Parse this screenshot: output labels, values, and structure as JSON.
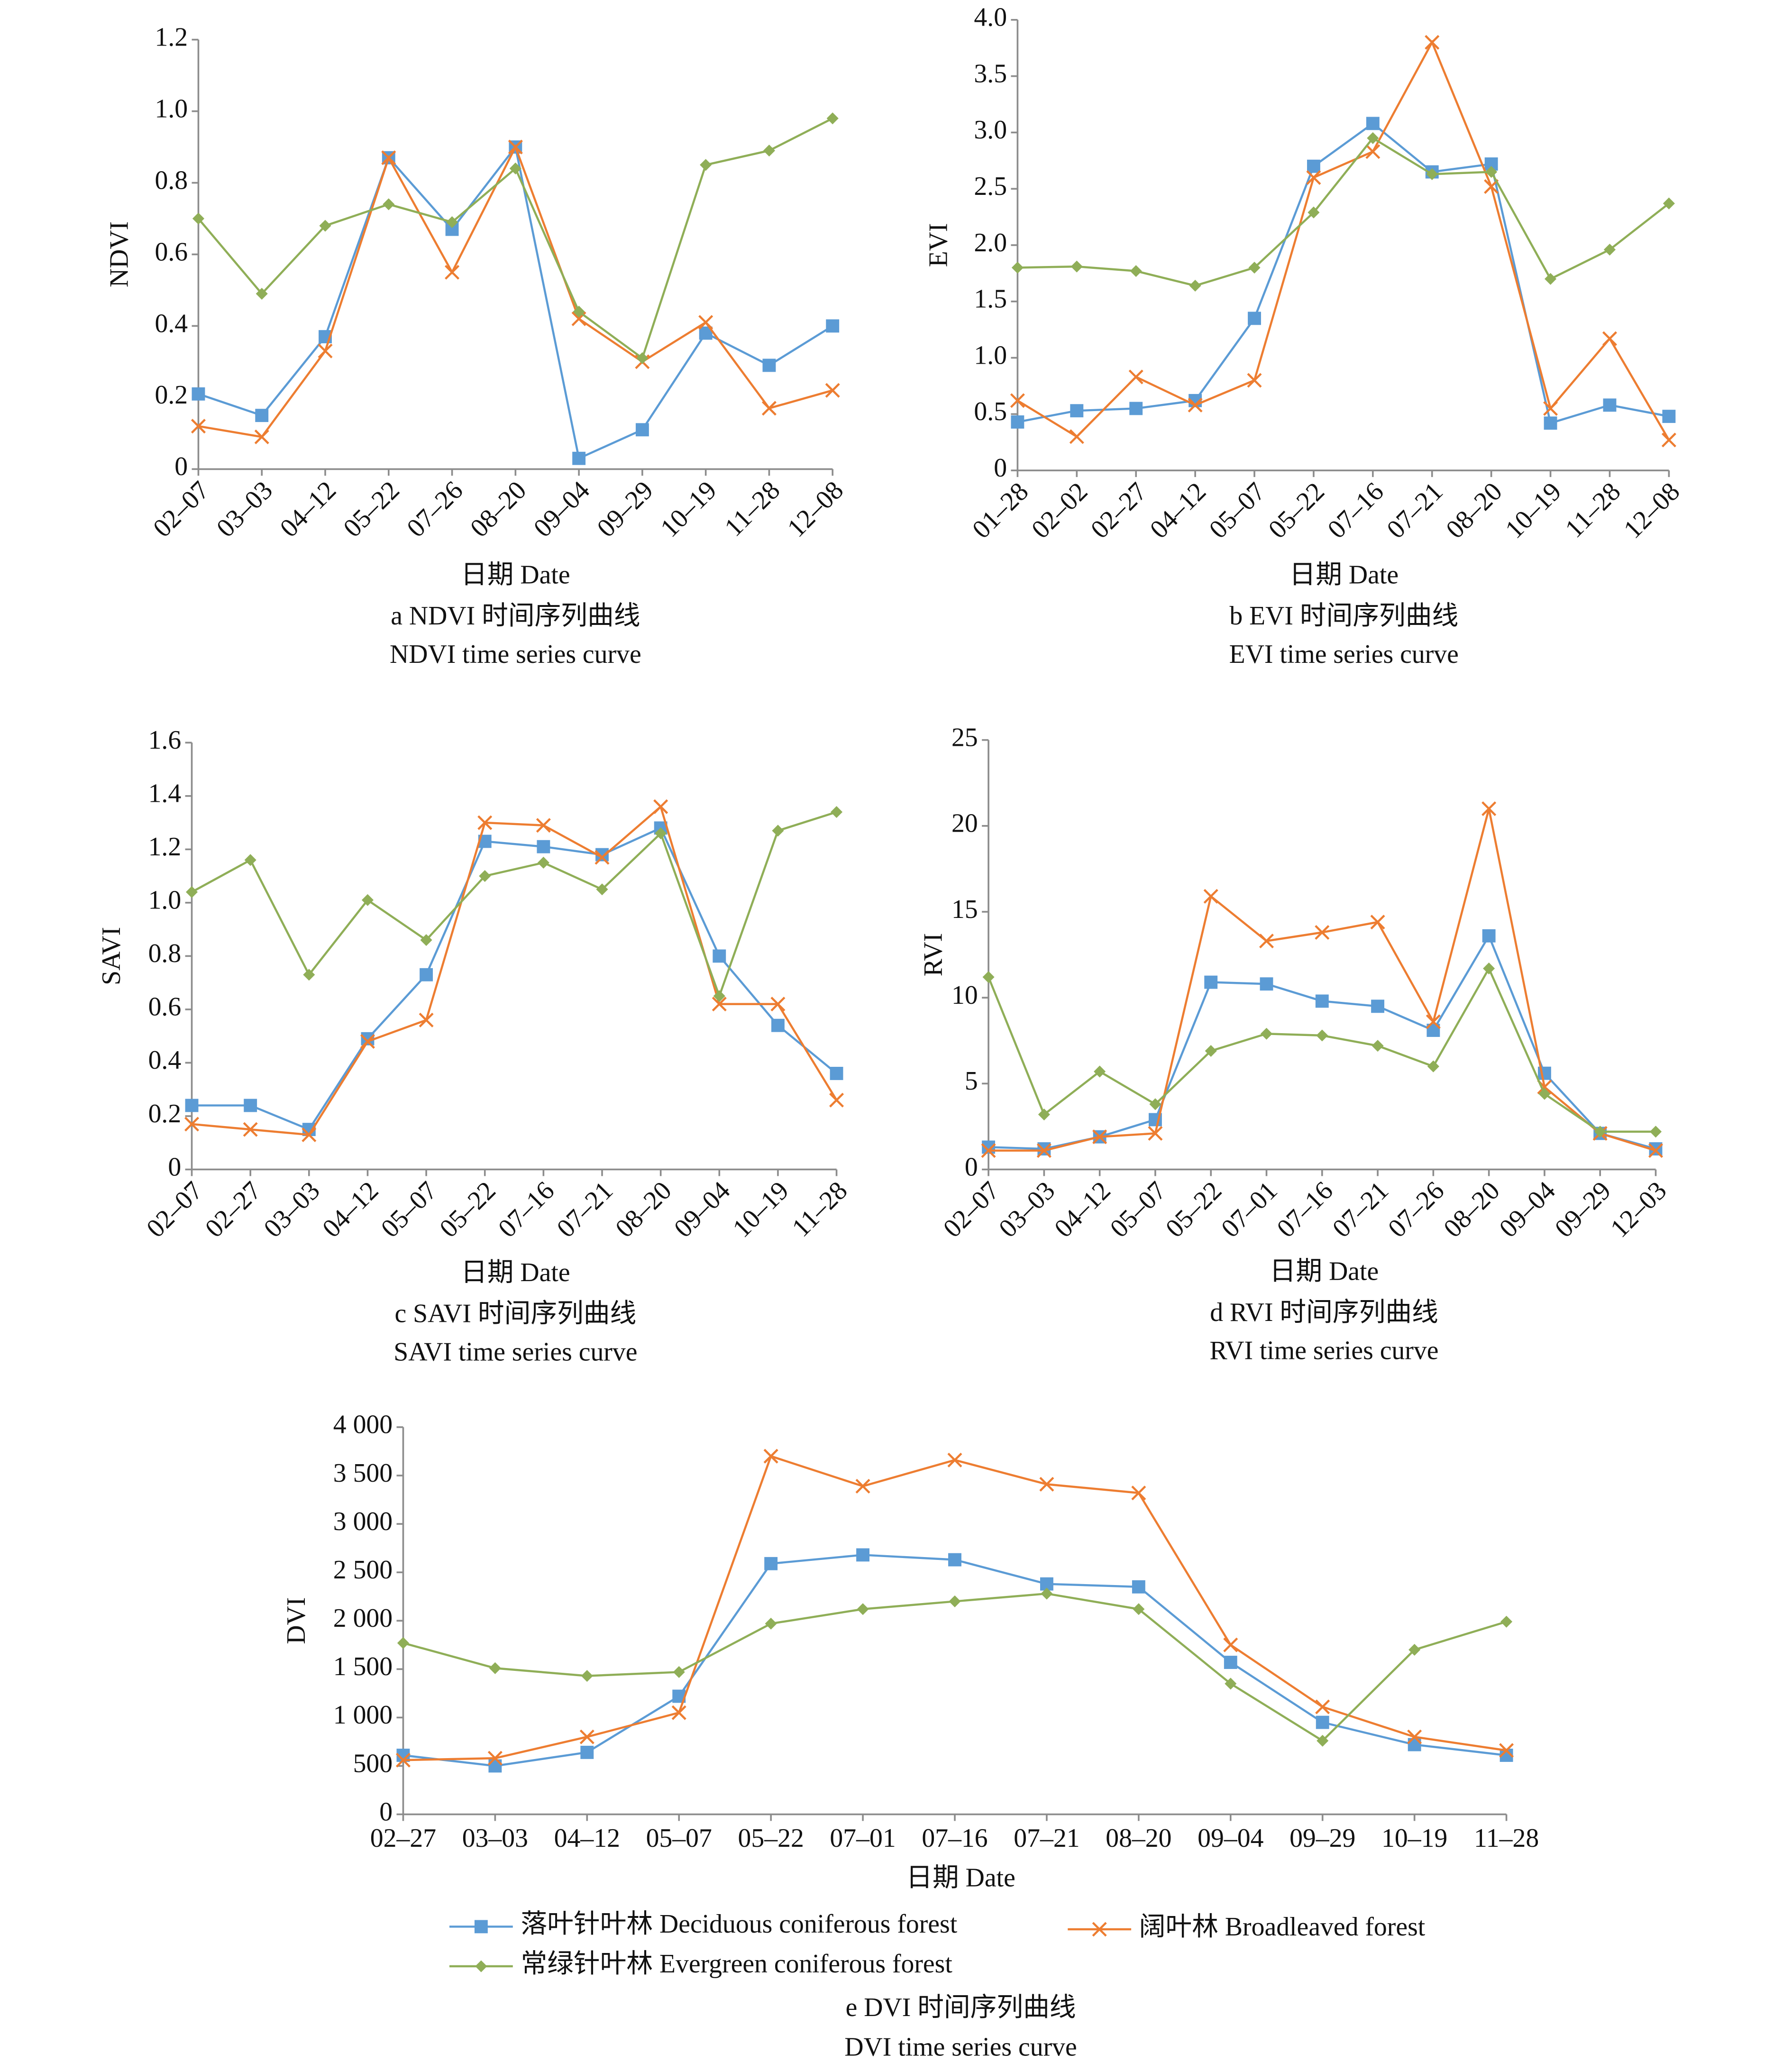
{
  "chart_data": [
    {
      "type": "line",
      "caption": "a  NDVI 时间序列曲线",
      "caption_en": "NDVI time series curve",
      "x_label": "日期 Date",
      "y_label": "NDVI",
      "categories": [
        "02–07",
        "03–03",
        "04–12",
        "05–22",
        "07–26",
        "08–20",
        "09–04",
        "09–29",
        "10–19",
        "11–28",
        "12–08"
      ],
      "ylim": [
        0,
        1.2
      ],
      "yticks": [
        0,
        0.2,
        0.4,
        0.6,
        0.8,
        {
          "value": 1,
          "label": "1.0"
        },
        1.2
      ],
      "series": [
        {
          "color": "#5b9bd5",
          "marker": "square",
          "values": [
            0.21,
            0.15,
            0.37,
            0.87,
            0.67,
            0.9,
            0.03,
            0.11,
            0.38,
            0.29,
            0.4
          ]
        },
        {
          "color": "#ed7d31",
          "marker": "x",
          "values": [
            0.12,
            0.09,
            0.33,
            0.87,
            0.55,
            0.9,
            0.42,
            0.3,
            0.41,
            0.17,
            0.22
          ]
        },
        {
          "color": "#8fae57",
          "marker": "diamond",
          "values": [
            0.7,
            0.49,
            0.68,
            0.74,
            0.69,
            0.84,
            0.44,
            0.31,
            0.85,
            0.89,
            0.98
          ]
        }
      ]
    },
    {
      "type": "line",
      "caption": "b EVI 时间序列曲线",
      "caption_en": "EVI time series curve",
      "x_label": "日期 Date",
      "y_label": "EVI",
      "categories": [
        "01–28",
        "02–02",
        "02–27",
        "04–12",
        "05–07",
        "05–22",
        "07–16",
        "07–21",
        "08–20",
        "10–19",
        "11–28",
        "12–08"
      ],
      "ylim": [
        0,
        4
      ],
      "yticks": [
        0,
        0.5,
        {
          "value": 1,
          "label": "1.0"
        },
        1.5,
        {
          "value": 2,
          "label": "2.0"
        },
        2.5,
        {
          "value": 3,
          "label": "3.0"
        },
        3.5,
        {
          "value": 4,
          "label": "4.0"
        }
      ],
      "series": [
        {
          "color": "#5b9bd5",
          "marker": "square",
          "values": [
            0.43,
            0.53,
            0.55,
            0.62,
            1.35,
            2.7,
            3.08,
            2.65,
            2.72,
            0.42,
            0.58,
            0.48
          ]
        },
        {
          "color": "#ed7d31",
          "marker": "x",
          "values": [
            0.62,
            0.3,
            0.83,
            0.58,
            0.8,
            2.6,
            2.83,
            3.8,
            2.52,
            0.55,
            1.17,
            0.27
          ]
        },
        {
          "color": "#8fae57",
          "marker": "diamond",
          "values": [
            1.8,
            1.81,
            1.77,
            1.64,
            1.8,
            2.29,
            2.95,
            2.63,
            2.65,
            1.7,
            1.96,
            2.37
          ]
        }
      ]
    },
    {
      "type": "line",
      "caption": "c SAVI 时间序列曲线",
      "caption_en": "SAVI time series curve",
      "x_label": "日期 Date",
      "y_label": "SAVI",
      "categories": [
        "02–07",
        "02–27",
        "03–03",
        "04–12",
        "05–07",
        "05–22",
        "07–16",
        "07–21",
        "08–20",
        "09–04",
        "10–19",
        "11–28"
      ],
      "ylim": [
        0,
        1.6
      ],
      "yticks": [
        0,
        0.2,
        0.4,
        0.6,
        0.8,
        {
          "value": 1,
          "label": "1.0"
        },
        1.2,
        1.4,
        1.6
      ],
      "series": [
        {
          "color": "#5b9bd5",
          "marker": "square",
          "values": [
            0.24,
            0.24,
            0.15,
            0.49,
            0.73,
            1.23,
            1.21,
            1.18,
            1.28,
            0.8,
            0.54,
            0.36
          ]
        },
        {
          "color": "#ed7d31",
          "marker": "x",
          "values": [
            0.17,
            0.15,
            0.13,
            0.48,
            0.56,
            1.3,
            1.29,
            1.17,
            1.36,
            0.62,
            0.62,
            0.26
          ]
        },
        {
          "color": "#8fae57",
          "marker": "diamond",
          "values": [
            1.04,
            1.16,
            0.73,
            1.01,
            0.86,
            1.1,
            1.15,
            1.05,
            1.26,
            0.65,
            1.27,
            1.34
          ]
        }
      ]
    },
    {
      "type": "line",
      "caption": "d RVI 时间序列曲线",
      "caption_en": "RVI time series curve",
      "x_label": "日期 Date",
      "y_label": "RVI",
      "categories": [
        "02–07",
        "03–03",
        "04–12",
        "05–07",
        "05–22",
        "07–01",
        "07–16",
        "07–21",
        "07–26",
        "08–20",
        "09–04",
        "09–29",
        "12–03"
      ],
      "ylim": [
        0,
        25
      ],
      "yticks": [
        0,
        5,
        10,
        15,
        20,
        25
      ],
      "series": [
        {
          "color": "#5b9bd5",
          "marker": "square",
          "values": [
            1.3,
            1.2,
            1.9,
            2.9,
            10.9,
            10.8,
            9.8,
            9.5,
            8.1,
            13.6,
            5.6,
            2.1,
            1.2
          ]
        },
        {
          "color": "#ed7d31",
          "marker": "x",
          "values": [
            1.1,
            1.1,
            1.9,
            2.1,
            15.9,
            13.3,
            13.8,
            14.4,
            8.6,
            21,
            4.8,
            2.1,
            1.1
          ]
        },
        {
          "color": "#8fae57",
          "marker": "diamond",
          "values": [
            11.2,
            3.2,
            5.7,
            3.8,
            6.9,
            7.9,
            7.8,
            7.2,
            6,
            11.7,
            4.4,
            2.2,
            2.2
          ]
        }
      ]
    },
    {
      "type": "line",
      "caption": "e  DVI 时间序列曲线",
      "caption_en": "DVI time series curve",
      "x_label": "日期 Date",
      "y_label": "DVI",
      "categories": [
        "02–27",
        "03–03",
        "04–12",
        "05–07",
        "05–22",
        "07–01",
        "07–16",
        "07–21",
        "08–20",
        "09–04",
        "09–29",
        "10–19",
        "11–28"
      ],
      "ylim": [
        0,
        4000
      ],
      "yticks": [
        0,
        500,
        {
          "value": 1000,
          "label": "1 000"
        },
        {
          "value": 1500,
          "label": "1 500"
        },
        {
          "value": 2000,
          "label": "2 000"
        },
        {
          "value": 2500,
          "label": "2 500"
        },
        {
          "value": 3000,
          "label": "3 000"
        },
        {
          "value": 3500,
          "label": "3 500"
        },
        {
          "value": 4000,
          "label": "4 000"
        }
      ],
      "series": [
        {
          "name": "落叶针叶林 Deciduous coniferous forest",
          "color": "#5b9bd5",
          "marker": "square",
          "values": [
            610,
            500,
            640,
            1220,
            2590,
            2680,
            2630,
            2380,
            2350,
            1570,
            950,
            720,
            610
          ]
        },
        {
          "name": "阔叶林 Broadleaved forest",
          "color": "#ed7d31",
          "marker": "x",
          "values": [
            560,
            580,
            800,
            1050,
            3700,
            3390,
            3660,
            3410,
            3320,
            1750,
            1110,
            800,
            660
          ]
        },
        {
          "name": "常绿针叶林 Evergreen coniferous forest",
          "color": "#8fae57",
          "marker": "diamond",
          "values": [
            1770,
            1510,
            1430,
            1470,
            1970,
            2120,
            2200,
            2280,
            2120,
            1350,
            760,
            1700,
            1990
          ]
        }
      ]
    }
  ]
}
